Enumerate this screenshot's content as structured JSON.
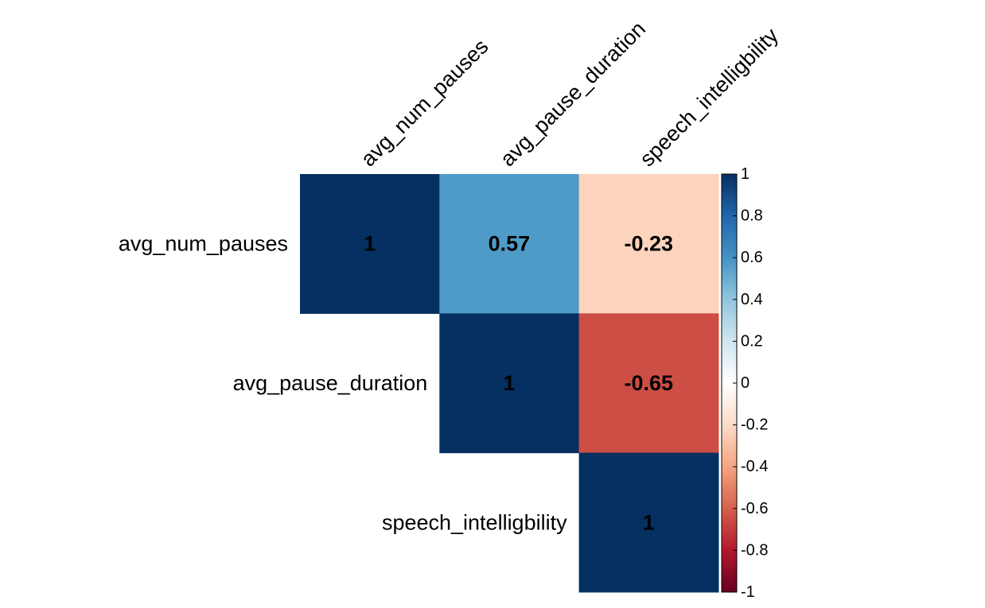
{
  "chart_data": {
    "type": "heatmap",
    "variant": "correlation-matrix-upper-triangle",
    "variables": [
      "avg_num_pauses",
      "avg_pause_duration",
      "speech_intelligbility"
    ],
    "matrix": [
      [
        1,
        0.57,
        -0.23
      ],
      [
        0.57,
        1,
        -0.65
      ],
      [
        -0.23,
        -0.65,
        1
      ]
    ],
    "cell_labels": [
      [
        "1",
        "0.57",
        "-0.23"
      ],
      [
        "",
        "1",
        "-0.65"
      ],
      [
        "",
        "",
        "1"
      ]
    ],
    "shown_triangle": "upper",
    "color_scale": {
      "range": [
        -1,
        1
      ],
      "palette": [
        "#67001F",
        "#B2182B",
        "#D6604D",
        "#F4A582",
        "#FDDBC7",
        "#FFFFFF",
        "#D1E5F0",
        "#92C5DE",
        "#4393C3",
        "#2166AC",
        "#053061"
      ],
      "ticks": [
        1,
        0.8,
        0.6,
        0.4,
        0.2,
        0,
        -0.2,
        -0.4,
        -0.6,
        -0.8,
        -1
      ],
      "tick_labels": [
        "1",
        "0.8",
        "0.6",
        "0.4",
        "0.2",
        "0",
        "-0.2",
        "-0.4",
        "-0.6",
        "-0.8",
        "-1"
      ],
      "position": "right"
    },
    "title": "",
    "grid": false
  }
}
